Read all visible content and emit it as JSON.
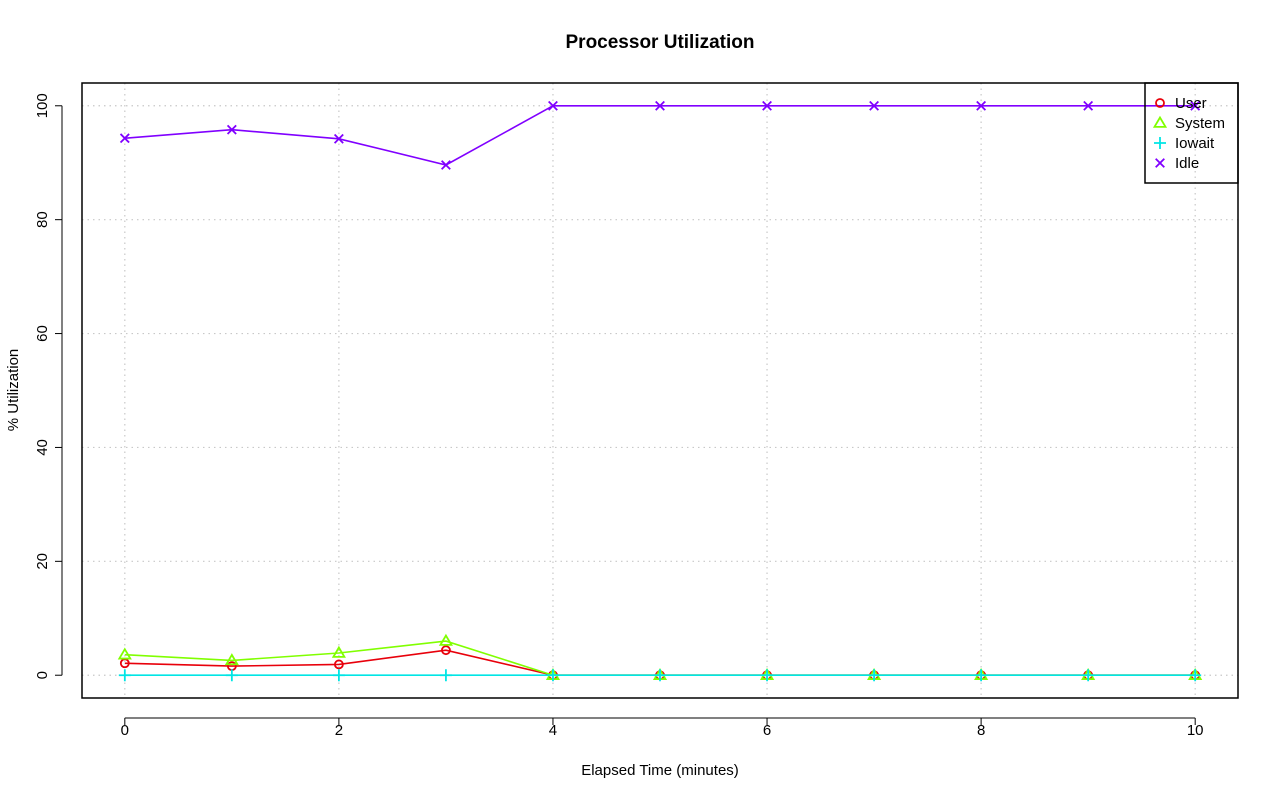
{
  "chart_data": {
    "type": "line",
    "title": "Processor Utilization",
    "xlabel": "Elapsed Time (minutes)",
    "ylabel": "% Utilization",
    "x": [
      0,
      1,
      2,
      3,
      4,
      5,
      6,
      7,
      8,
      9,
      10
    ],
    "xlim": [
      -0.4,
      10.4
    ],
    "ylim": [
      -4,
      104
    ],
    "xticks": [
      0,
      2,
      4,
      6,
      8,
      10
    ],
    "yticks": [
      0,
      20,
      40,
      60,
      80,
      100
    ],
    "grid": true,
    "legend_position": "top-right",
    "series": [
      {
        "name": "User",
        "color": "#e8000b",
        "marker": "circle",
        "values": [
          2.1,
          1.6,
          1.9,
          4.4,
          0,
          0,
          0,
          0,
          0,
          0,
          0
        ]
      },
      {
        "name": "System",
        "color": "#80ff00",
        "marker": "triangle",
        "values": [
          3.6,
          2.6,
          3.9,
          6.0,
          0,
          0,
          0,
          0,
          0,
          0,
          0
        ]
      },
      {
        "name": "Iowait",
        "color": "#00e5e5",
        "marker": "plus",
        "values": [
          0,
          0,
          0,
          0,
          0,
          0,
          0,
          0,
          0,
          0,
          0
        ]
      },
      {
        "name": "Idle",
        "color": "#8000ff",
        "marker": "cross",
        "values": [
          94.3,
          95.8,
          94.2,
          89.6,
          100,
          100,
          100,
          100,
          100,
          100,
          100
        ]
      }
    ]
  }
}
